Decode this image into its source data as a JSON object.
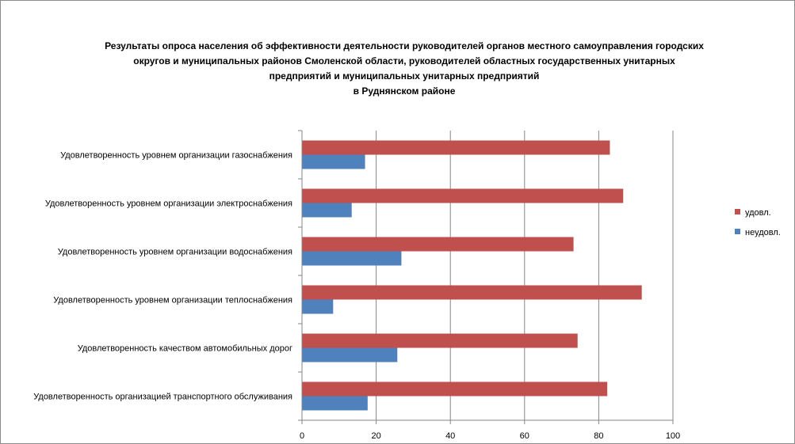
{
  "chart_data": {
    "type": "bar",
    "orientation": "horizontal",
    "title_lines": [
      "Результаты опроса населения об эффективности деятельности руководителей органов местного самоуправления городских",
      "округов и муниципальных районов Смоленской области, руководителей областных государственных унитарных",
      "предприятий и муниципальных унитарных предприятий",
      "в Руднянском районе"
    ],
    "categories": [
      "Удовлетворенность  уровнем  организации газоснабжения",
      "Удовлетворенность  уровнем организации электроснабжения",
      "Удовлетворенность  уровнем  организации водоснабжения",
      "Удовлетворенность  уровнем  организации теплоснабжения",
      "Удовлетворенность  качеством  автомобильных дорог",
      "Удовлетворенность  организацией  транспортного обслуживания"
    ],
    "series": [
      {
        "name": "удовл.",
        "color": "#c0504d",
        "values": [
          83,
          86.6,
          73.2,
          91.6,
          74.3,
          82.3
        ]
      },
      {
        "name": "неудовл.",
        "color": "#4f81bd",
        "values": [
          17,
          13.4,
          26.8,
          8.4,
          25.7,
          17.7
        ]
      }
    ],
    "xlim": [
      0,
      100
    ],
    "xticks": [
      "0",
      "20",
      "40",
      "60",
      "80",
      "100"
    ],
    "grid": true,
    "legend_position": "right"
  }
}
